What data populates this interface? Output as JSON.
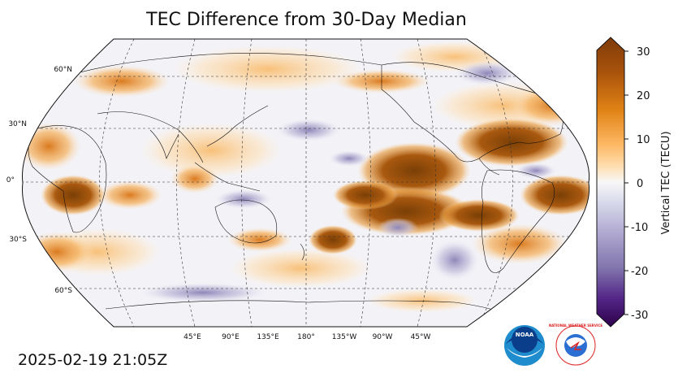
{
  "title": "TEC Difference from 30-Day Median",
  "timestamp": "2025-02-19 21:05Z",
  "map": {
    "projection": "robinson",
    "central_longitude_deg": 180,
    "lat_labels": [
      "60°N",
      "30°N",
      "0°",
      "30°S",
      "60°S"
    ],
    "lon_labels": [
      "45°E",
      "90°E",
      "135°E",
      "180°",
      "135°W",
      "90°W",
      "45°W"
    ],
    "gridlines": true,
    "coastlines": true,
    "borders": true
  },
  "colorbar": {
    "label": "Vertical TEC (TECU)",
    "min": -30,
    "max": 30,
    "extend": "both",
    "ticks": [
      "30",
      "20",
      "10",
      "0",
      "-10",
      "-20",
      "-30"
    ],
    "colormap": "PuOr_r",
    "color_high": "#7a3f06",
    "color_mid": "#f7f7f7",
    "color_low": "#2d004b"
  },
  "logos": {
    "noaa": "NOAA",
    "nws": "NATIONAL WEATHER SERVICE"
  }
}
